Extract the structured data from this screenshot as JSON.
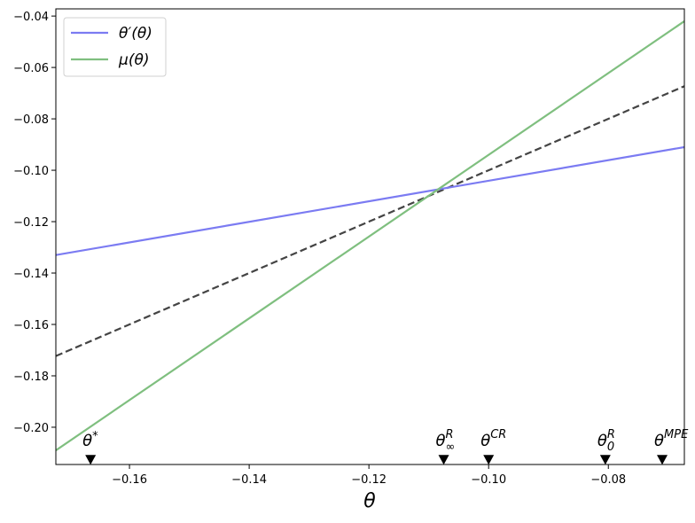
{
  "chart_data": {
    "type": "line",
    "xlabel": "θ",
    "xlim": [
      -0.1723,
      -0.0673
    ],
    "ylim": [
      -0.2145,
      -0.0372
    ],
    "xticks": [
      {
        "value": -0.16,
        "label": "−0.16"
      },
      {
        "value": -0.14,
        "label": "−0.14"
      },
      {
        "value": -0.12,
        "label": "−0.12"
      },
      {
        "value": -0.1,
        "label": "−0.10"
      },
      {
        "value": -0.08,
        "label": "−0.08"
      }
    ],
    "yticks": [
      {
        "value": -0.04,
        "label": "−0.04"
      },
      {
        "value": -0.06,
        "label": "−0.06"
      },
      {
        "value": -0.08,
        "label": "−0.08"
      },
      {
        "value": -0.1,
        "label": "−0.10"
      },
      {
        "value": -0.12,
        "label": "−0.12"
      },
      {
        "value": -0.14,
        "label": "−0.14"
      },
      {
        "value": -0.16,
        "label": "−0.16"
      },
      {
        "value": -0.18,
        "label": "−0.18"
      },
      {
        "value": -0.2,
        "label": "−0.20"
      }
    ],
    "legend": "upper left",
    "series": [
      {
        "name": "θ′(θ)",
        "color": "#7b7bf2",
        "x": [
          -0.1723,
          -0.0673
        ],
        "values": [
          -0.133,
          -0.091
        ]
      },
      {
        "name": "μ(θ)",
        "color": "#7fbf7f",
        "x": [
          -0.1723,
          -0.0673
        ],
        "values": [
          -0.209,
          -0.042
        ]
      }
    ],
    "reference_line": {
      "color": "#444444",
      "dashed": true,
      "x": [
        -0.1723,
        -0.0673
      ],
      "values": [
        -0.1723,
        -0.0673
      ]
    },
    "markers": [
      {
        "x": -0.1665,
        "y": -0.2125,
        "base": "θ",
        "sup": "*"
      },
      {
        "x": -0.1075,
        "y": -0.2125,
        "base": "θ",
        "sup": "R",
        "sub": "∞"
      },
      {
        "x": -0.1,
        "y": -0.2125,
        "base": "θ",
        "sup": "CR"
      },
      {
        "x": -0.0805,
        "y": -0.2125,
        "base": "θ",
        "sup": "R",
        "sub": "0"
      },
      {
        "x": -0.071,
        "y": -0.2125,
        "base": "θ",
        "sup": "MPE"
      }
    ]
  }
}
